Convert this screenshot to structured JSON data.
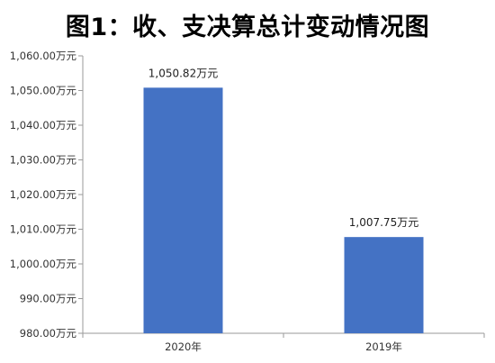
{
  "chart_data": {
    "type": "bar",
    "title": "图1：收、支决算总计变动情况图",
    "categories": [
      "2020年",
      "2019年"
    ],
    "series": [
      {
        "values": [
          1050.82,
          1007.75
        ]
      }
    ],
    "data_labels": [
      "1,050.82万元",
      "1,007.75万元"
    ],
    "yticks": [
      "980.00万元",
      "990.00万元",
      "1,000.00万元",
      "1,010.00万元",
      "1,020.00万元",
      "1,030.00万元",
      "1,040.00万元",
      "1,050.00万元",
      "1,060.00万元"
    ],
    "ylim": [
      980,
      1060
    ],
    "ystep": 10,
    "grid": false,
    "bar_color": "#4472C4"
  }
}
